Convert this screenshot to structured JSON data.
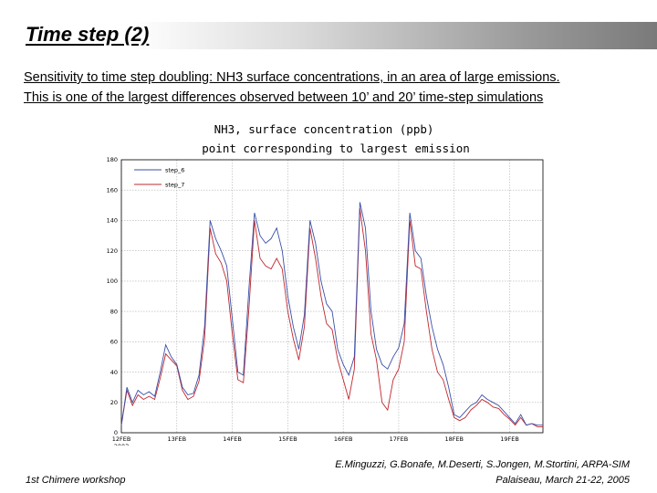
{
  "slide": {
    "title": "Time step (2)",
    "subtitle_line1": "Sensitivity to time step doubling: NH3 surface concentrations, in an area of large emissions.",
    "subtitle_line2": "This is one of the largest differences observed between 10’ and 20’ time-step simulations",
    "footer_left": "1st Chimere workshop",
    "footer_right_line1": "E.Minguzzi, G.Bonafe, M.Deserti, S.Jongen, M.Stortini, ARPA-SIM",
    "footer_right_line2": "Palaiseau, March 21-22, 2005"
  },
  "chart_data": {
    "type": "line",
    "title": "NH3, surface concentration (ppb)",
    "subtitle": "point corresponding to largest emission",
    "ylim": [
      0,
      180
    ],
    "yticks": [
      "0",
      "20",
      "40",
      "60",
      "80",
      "100",
      "120",
      "140",
      "160",
      "180"
    ],
    "xlim": [
      0,
      7.6
    ],
    "xticks": [
      "12FEB",
      "13FEB",
      "14FEB",
      "15FEB",
      "16FEB",
      "17FEB",
      "18FEB",
      "19FEB"
    ],
    "xlabel_extra": "2003",
    "legend": [
      "step_6",
      "step_7"
    ],
    "legend_position": "top-left",
    "colors": {
      "step_6": "#3a4fa8",
      "step_7": "#c0282e"
    },
    "series": [
      {
        "name": "step_6",
        "x": [
          0,
          0.1,
          0.2,
          0.3,
          0.4,
          0.5,
          0.6,
          0.7,
          0.8,
          0.9,
          1.0,
          1.1,
          1.2,
          1.3,
          1.4,
          1.5,
          1.6,
          1.7,
          1.8,
          1.9,
          2.0,
          2.1,
          2.2,
          2.3,
          2.4,
          2.5,
          2.6,
          2.7,
          2.8,
          2.9,
          3.0,
          3.1,
          3.2,
          3.3,
          3.4,
          3.5,
          3.6,
          3.7,
          3.8,
          3.9,
          4.0,
          4.1,
          4.2,
          4.3,
          4.4,
          4.5,
          4.6,
          4.7,
          4.8,
          4.9,
          5.0,
          5.1,
          5.2,
          5.3,
          5.4,
          5.5,
          5.6,
          5.7,
          5.8,
          5.9,
          6.0,
          6.1,
          6.2,
          6.3,
          6.4,
          6.5,
          6.6,
          6.7,
          6.8,
          6.9,
          7.0,
          7.1,
          7.2,
          7.3,
          7.4,
          7.5,
          7.6
        ],
        "values": [
          5,
          30,
          20,
          28,
          25,
          27,
          24,
          40,
          58,
          50,
          45,
          30,
          25,
          26,
          38,
          70,
          140,
          128,
          120,
          110,
          75,
          40,
          38,
          95,
          145,
          130,
          125,
          128,
          135,
          120,
          90,
          70,
          55,
          78,
          140,
          125,
          100,
          85,
          80,
          55,
          45,
          38,
          50,
          152,
          135,
          80,
          55,
          45,
          42,
          50,
          56,
          72,
          145,
          120,
          115,
          90,
          70,
          55,
          45,
          30,
          12,
          10,
          14,
          18,
          20,
          25,
          22,
          20,
          18,
          14,
          10,
          6,
          12,
          5,
          6,
          5,
          5
        ]
      },
      {
        "name": "step_7",
        "x": [
          0,
          0.1,
          0.2,
          0.3,
          0.4,
          0.5,
          0.6,
          0.7,
          0.8,
          0.9,
          1.0,
          1.1,
          1.2,
          1.3,
          1.4,
          1.5,
          1.6,
          1.7,
          1.8,
          1.9,
          2.0,
          2.1,
          2.2,
          2.3,
          2.4,
          2.5,
          2.6,
          2.7,
          2.8,
          2.9,
          3.0,
          3.1,
          3.2,
          3.3,
          3.4,
          3.5,
          3.6,
          3.7,
          3.8,
          3.9,
          4.0,
          4.1,
          4.2,
          4.3,
          4.4,
          4.5,
          4.6,
          4.7,
          4.8,
          4.9,
          5.0,
          5.1,
          5.2,
          5.3,
          5.4,
          5.5,
          5.6,
          5.7,
          5.8,
          5.9,
          6.0,
          6.1,
          6.2,
          6.3,
          6.4,
          6.5,
          6.6,
          6.7,
          6.8,
          6.9,
          7.0,
          7.1,
          7.2,
          7.3,
          7.4,
          7.5,
          7.6
        ],
        "values": [
          5,
          28,
          18,
          25,
          22,
          24,
          22,
          36,
          52,
          48,
          44,
          28,
          22,
          24,
          34,
          62,
          135,
          118,
          112,
          100,
          65,
          35,
          33,
          82,
          140,
          115,
          110,
          108,
          115,
          108,
          80,
          62,
          48,
          70,
          135,
          115,
          90,
          72,
          68,
          48,
          35,
          22,
          42,
          148,
          120,
          65,
          48,
          20,
          15,
          35,
          42,
          60,
          140,
          110,
          108,
          80,
          55,
          40,
          35,
          22,
          10,
          8,
          10,
          15,
          18,
          22,
          20,
          17,
          16,
          12,
          9,
          5,
          10,
          5,
          6,
          4,
          4
        ]
      }
    ]
  }
}
